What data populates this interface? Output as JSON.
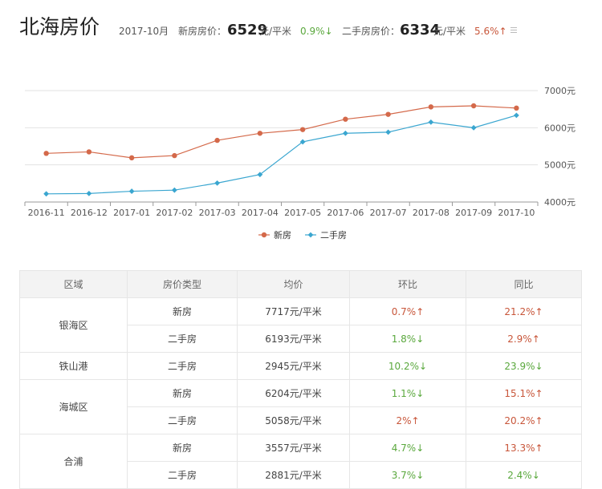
{
  "header": {
    "city": "北海房价",
    "month": "2017-10月",
    "new_label": "新房房价：",
    "new_price": "6529",
    "unit": "元/平米",
    "new_change": "0.9%",
    "new_dir": "down",
    "second_label": "二手房房价：",
    "second_price": "6334",
    "second_change": "5.6%",
    "second_dir": "up"
  },
  "chart_data": {
    "type": "line",
    "categories": [
      "2016-11",
      "2016-12",
      "2017-01",
      "2017-02",
      "2017-03",
      "2017-04",
      "2017-05",
      "2017-06",
      "2017-07",
      "2017-08",
      "2017-09",
      "2017-10"
    ],
    "series": [
      {
        "name": "新房",
        "color": "#d4694a",
        "values": [
          5310,
          5350,
          5190,
          5250,
          5660,
          5850,
          5950,
          6230,
          6360,
          6560,
          6590,
          6529
        ]
      },
      {
        "name": "二手房",
        "color": "#3aa6d0",
        "values": [
          4220,
          4230,
          4290,
          4320,
          4510,
          4740,
          5620,
          5850,
          5880,
          6150,
          6000,
          6334
        ]
      }
    ],
    "y_ticks": [
      "4000元",
      "5000元",
      "6000元",
      "7000元"
    ],
    "ylim": [
      4000,
      7000
    ],
    "y_tick_values": [
      4000,
      5000,
      6000,
      7000
    ],
    "legend_position": "bottom",
    "grid": true
  },
  "table": {
    "headers": [
      "区域",
      "房价类型",
      "均价",
      "环比",
      "同比"
    ],
    "rows": [
      {
        "district": "银海区",
        "rowspan": 2,
        "type": "新房",
        "price": "7717元/平米",
        "mom": "0.7%",
        "mom_dir": "up",
        "yoy": "21.2%",
        "yoy_dir": "up"
      },
      {
        "type": "二手房",
        "price": "6193元/平米",
        "mom": "1.8%",
        "mom_dir": "down",
        "yoy": "2.9%",
        "yoy_dir": "up"
      },
      {
        "district": "铁山港",
        "rowspan": 1,
        "type": "二手房",
        "price": "2945元/平米",
        "mom": "10.2%",
        "mom_dir": "down",
        "yoy": "23.9%",
        "yoy_dir": "down"
      },
      {
        "district": "海城区",
        "rowspan": 2,
        "type": "新房",
        "price": "6204元/平米",
        "mom": "1.1%",
        "mom_dir": "down",
        "yoy": "15.1%",
        "yoy_dir": "up"
      },
      {
        "type": "二手房",
        "price": "5058元/平米",
        "mom": "2%",
        "mom_dir": "up",
        "yoy": "20.2%",
        "yoy_dir": "up"
      },
      {
        "district": "合浦",
        "rowspan": 2,
        "type": "新房",
        "price": "3557元/平米",
        "mom": "4.7%",
        "mom_dir": "down",
        "yoy": "13.3%",
        "yoy_dir": "up"
      },
      {
        "type": "二手房",
        "price": "2881元/平米",
        "mom": "3.7%",
        "mom_dir": "down",
        "yoy": "2.4%",
        "yoy_dir": "down"
      }
    ]
  }
}
